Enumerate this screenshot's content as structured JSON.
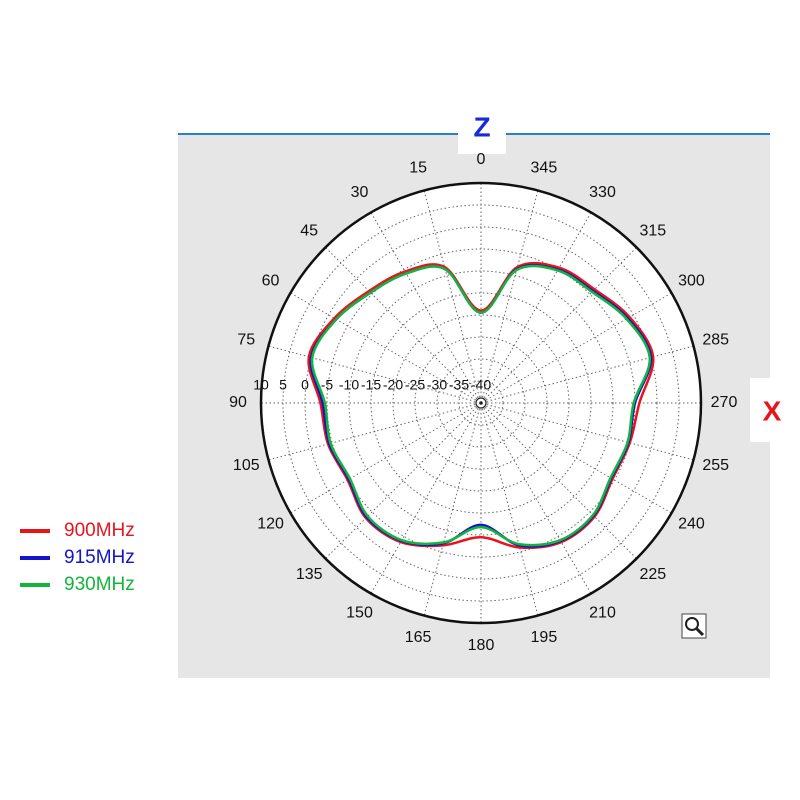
{
  "chart_data": {
    "type": "polar",
    "z_label": "Z",
    "x_label": "X",
    "zero": "top",
    "direction": "counterclockwise",
    "thetaticks": [
      0,
      15,
      30,
      45,
      60,
      75,
      90,
      105,
      120,
      135,
      150,
      165,
      180,
      195,
      210,
      225,
      240,
      255,
      270,
      285,
      300,
      315,
      330,
      345
    ],
    "rlim": [
      -40,
      10
    ],
    "rticks": [
      10,
      5,
      0,
      -5,
      -10,
      -15,
      -20,
      -25,
      -30,
      -35,
      -40
    ],
    "grid": true,
    "legend": "left",
    "series": [
      {
        "name": "900MHz",
        "color": "#e8141c",
        "values": [
          -19,
          -8,
          -5.5,
          -4,
          -1.5,
          0.5,
          -3.5,
          -4,
          -5,
          -3,
          -3.5,
          -6.5,
          -9.5,
          -6,
          -3.5,
          -3.5,
          -5.5,
          -5,
          -4,
          0.5,
          -1,
          -3.5,
          -4.5,
          -8
        ]
      },
      {
        "name": "915MHz",
        "color": "#1414c8",
        "values": [
          -19.5,
          -8.5,
          -6,
          -4.5,
          -2,
          0,
          -4,
          -4.3,
          -5.3,
          -3.3,
          -3.8,
          -7,
          -12.3,
          -6.5,
          -3.8,
          -3.8,
          -5.8,
          -5.3,
          -5,
          0,
          -1.5,
          -4,
          -5,
          -8.5
        ]
      },
      {
        "name": "930MHz",
        "color": "#14b43c",
        "values": [
          -19.5,
          -8.5,
          -6,
          -4.5,
          -2,
          -0.3,
          -4.5,
          -4.6,
          -5.6,
          -3.6,
          -4,
          -7.2,
          -11.8,
          -6.8,
          -4,
          -4,
          -6,
          -5.5,
          -5.3,
          -0.3,
          -1.8,
          -4.3,
          -5.2,
          -8.7
        ]
      }
    ]
  }
}
